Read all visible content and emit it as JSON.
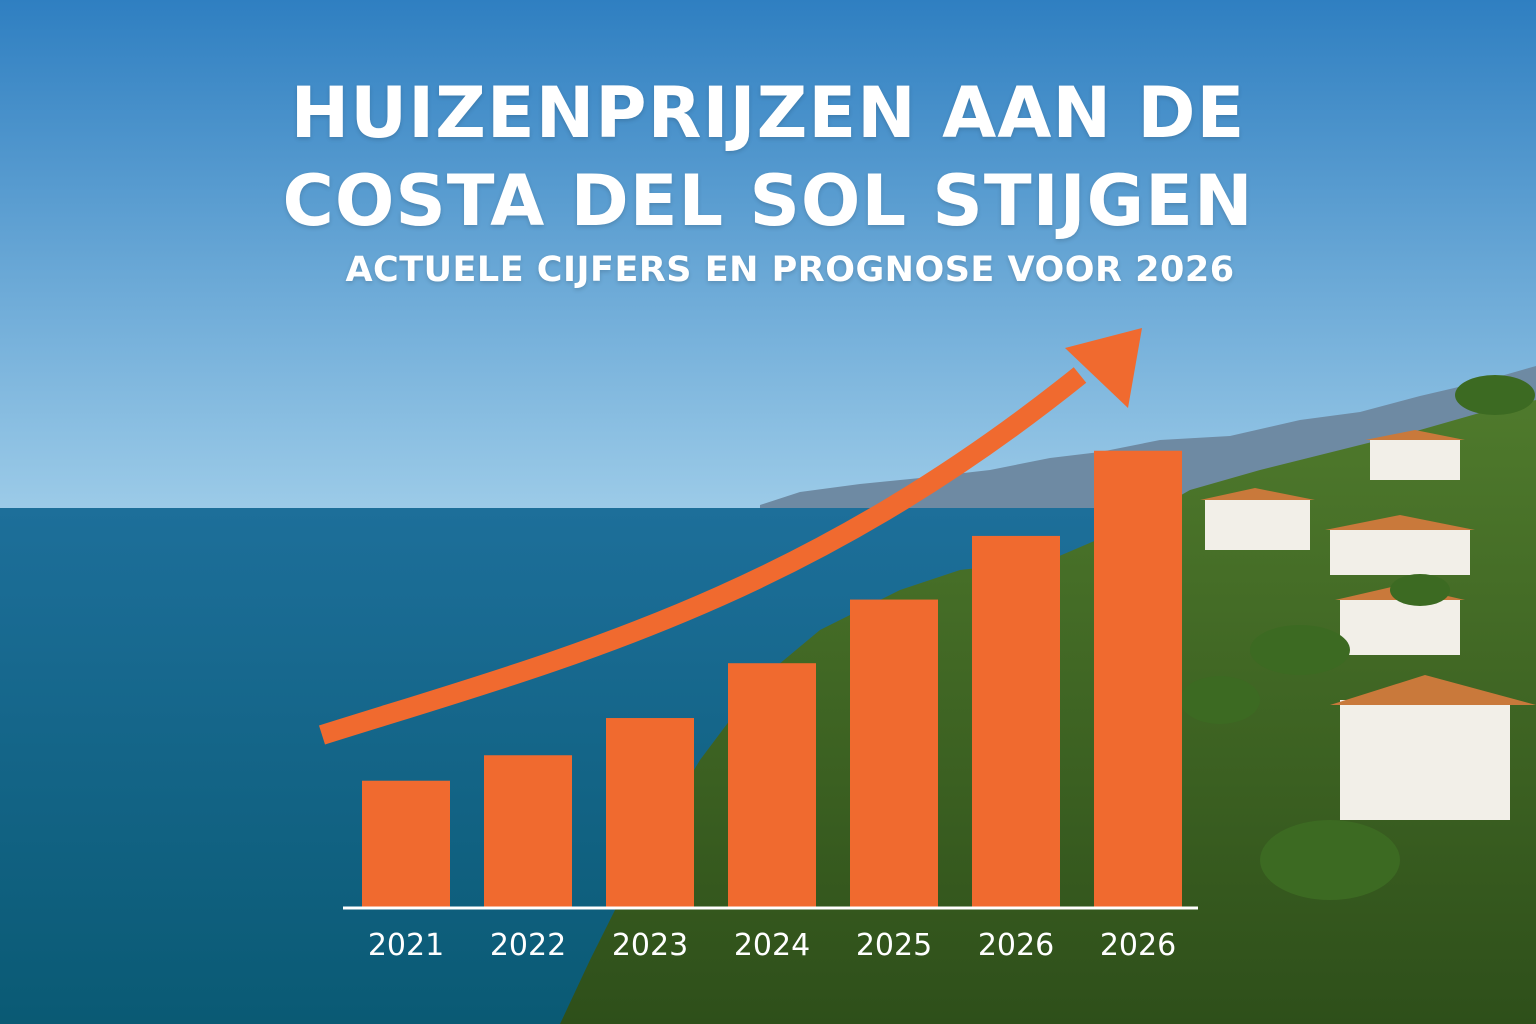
{
  "title_line_1": "HUIZENPRIJZEN AAN DE",
  "title_line_2": "COSTA DEL SOL STIJGEN",
  "subtitle": "ACTUELE CIJFERS EN PROGNOSE VOOR 2026",
  "colors": {
    "bar": "#f06a2f",
    "arrow": "#f06a2f",
    "text": "#ffffff",
    "sky_top": "#2f7fc1",
    "sky_bottom": "#9ccbe8",
    "sea": "#0f6a8c"
  },
  "chart_data": {
    "type": "bar",
    "title": "HUIZENPRIJZEN AAN DE COSTA DEL SOL STIJGEN",
    "subtitle": "ACTUELE CIJFERS EN PROGNOSE VOOR 2026",
    "categories": [
      "2021",
      "2022",
      "2023",
      "2024",
      "2025",
      "2026",
      "2026"
    ],
    "values": [
      130,
      156,
      194,
      250,
      315,
      380,
      467
    ],
    "xlabel": "",
    "ylabel": "",
    "ylim": [
      0,
      480
    ],
    "grid": false,
    "legend": "none",
    "trend_arrow": "rising"
  }
}
